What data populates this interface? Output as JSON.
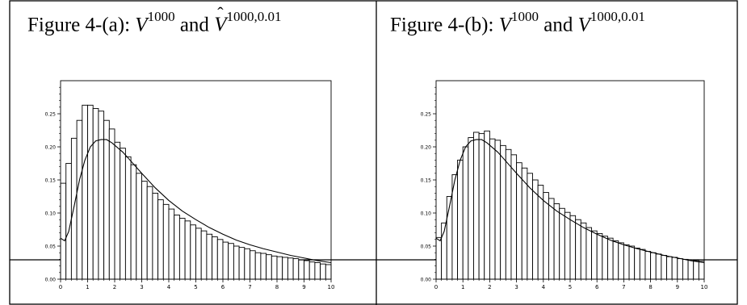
{
  "panels": [
    {
      "title_prefix": "Figure 4-(a): ",
      "title_v1": "V",
      "title_sup1": "1000",
      "title_and": " and ",
      "title_v2": "V",
      "title_sup2": "1000,0.01",
      "title_v2_hat": true
    },
    {
      "title_prefix": "Figure 4-(b): ",
      "title_v1": "V",
      "title_sup1": "1000",
      "title_and": " and ",
      "title_v2": "V",
      "title_sup2": "1000,0.01",
      "title_v2_hat": false
    }
  ],
  "chart_data": [
    {
      "type": "bar",
      "overlay": "line",
      "title": "Figure 4-(a): V^1000 and V̂^1000,0.01",
      "xlim": [
        0,
        10
      ],
      "ylim": [
        0,
        0.3
      ],
      "x_ticks": [
        "0",
        "1",
        "2",
        "3",
        "4",
        "5",
        "6",
        "7",
        "8",
        "9",
        "10"
      ],
      "y_ticks": [
        "0.00",
        "0.05",
        "0.10",
        "0.15",
        "0.20",
        "0.25"
      ],
      "y_tick_values": [
        0,
        0.05,
        0.1,
        0.15,
        0.2,
        0.25
      ],
      "bin_width": 0.2,
      "bar_values": [
        0.145,
        0.175,
        0.213,
        0.24,
        0.263,
        0.263,
        0.258,
        0.254,
        0.24,
        0.227,
        0.207,
        0.198,
        0.185,
        0.173,
        0.16,
        0.148,
        0.14,
        0.13,
        0.12,
        0.113,
        0.106,
        0.097,
        0.092,
        0.088,
        0.082,
        0.077,
        0.073,
        0.068,
        0.064,
        0.06,
        0.056,
        0.054,
        0.05,
        0.048,
        0.046,
        0.043,
        0.04,
        0.039,
        0.037,
        0.035,
        0.034,
        0.033,
        0.032,
        0.031,
        0.029,
        0.028,
        0.026,
        0.025,
        0.023,
        0.022
      ],
      "line_x": [
        0,
        0.15,
        0.3,
        0.5,
        0.7,
        0.9,
        1.1,
        1.3,
        1.5,
        1.7,
        1.9,
        2.1,
        2.3,
        2.5,
        3,
        3.5,
        4,
        4.5,
        5,
        5.5,
        6,
        6.5,
        7,
        7.5,
        8,
        8.5,
        9,
        9.5,
        10
      ],
      "line_y": [
        0.062,
        0.058,
        0.072,
        0.11,
        0.15,
        0.18,
        0.2,
        0.209,
        0.211,
        0.211,
        0.206,
        0.199,
        0.192,
        0.183,
        0.16,
        0.138,
        0.119,
        0.103,
        0.09,
        0.078,
        0.068,
        0.059,
        0.052,
        0.046,
        0.041,
        0.036,
        0.032,
        0.028,
        0.025
      ]
    },
    {
      "type": "bar",
      "overlay": "line",
      "title": "Figure 4-(b): V^1000 and V^1000,0.01",
      "xlim": [
        0,
        10
      ],
      "ylim": [
        0,
        0.3
      ],
      "x_ticks": [
        "0",
        "1",
        "2",
        "3",
        "4",
        "5",
        "6",
        "7",
        "8",
        "9",
        "10"
      ],
      "y_ticks": [
        "0.00",
        "0.05",
        "0.10",
        "0.15",
        "0.20",
        "0.25"
      ],
      "y_tick_values": [
        0,
        0.05,
        0.1,
        0.15,
        0.2,
        0.25
      ],
      "bin_width": 0.2,
      "bar_values": [
        0.063,
        0.085,
        0.125,
        0.158,
        0.18,
        0.2,
        0.214,
        0.222,
        0.22,
        0.224,
        0.212,
        0.21,
        0.202,
        0.196,
        0.188,
        0.176,
        0.168,
        0.16,
        0.15,
        0.142,
        0.131,
        0.122,
        0.114,
        0.107,
        0.101,
        0.096,
        0.09,
        0.085,
        0.078,
        0.073,
        0.069,
        0.065,
        0.062,
        0.058,
        0.055,
        0.052,
        0.05,
        0.047,
        0.045,
        0.042,
        0.04,
        0.038,
        0.036,
        0.034,
        0.033,
        0.031,
        0.03,
        0.029,
        0.028,
        0.027
      ],
      "line_x": [
        0,
        0.15,
        0.3,
        0.5,
        0.7,
        0.9,
        1.1,
        1.3,
        1.5,
        1.7,
        1.9,
        2.1,
        2.3,
        2.5,
        3,
        3.5,
        4,
        4.5,
        5,
        5.5,
        6,
        6.5,
        7,
        7.5,
        8,
        8.5,
        9,
        9.5,
        10
      ],
      "line_y": [
        0.062,
        0.058,
        0.072,
        0.11,
        0.15,
        0.18,
        0.2,
        0.209,
        0.211,
        0.211,
        0.206,
        0.199,
        0.192,
        0.183,
        0.16,
        0.138,
        0.119,
        0.103,
        0.09,
        0.078,
        0.068,
        0.059,
        0.052,
        0.046,
        0.041,
        0.036,
        0.032,
        0.028,
        0.025
      ]
    }
  ]
}
